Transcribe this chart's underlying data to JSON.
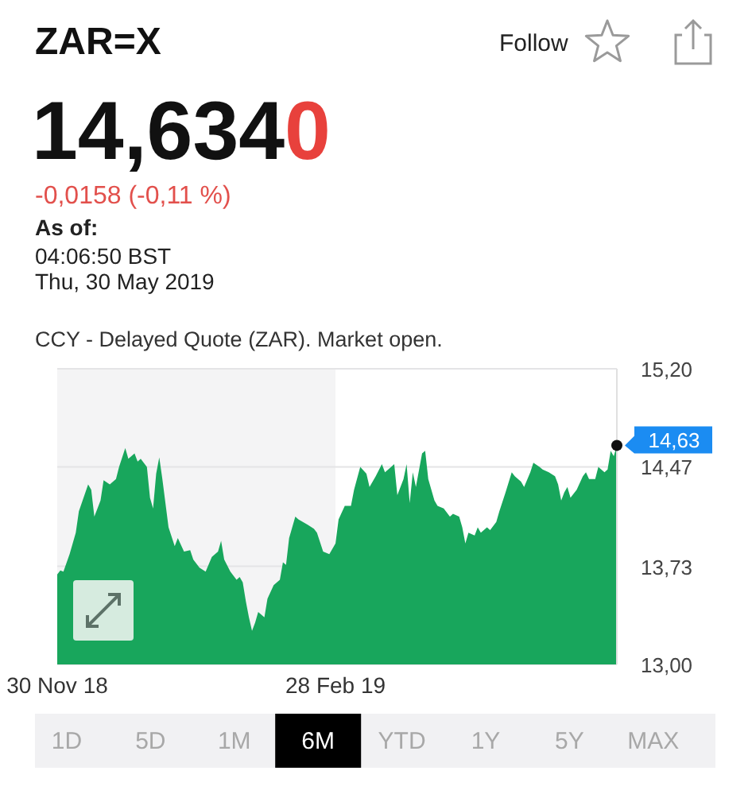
{
  "chart_data": {
    "type": "area",
    "title": "ZAR=X",
    "subtitle": "14,6340",
    "annotations": [
      "Follow",
      "-0,0158 (-0,11 %)",
      "As of:",
      "04:06:50 BST",
      "Thu, 30 May 2019",
      "CCY - Delayed Quote (ZAR). Market open.",
      "1D",
      "5D",
      "1M",
      "6M",
      "YTD",
      "1Y",
      "5Y",
      "MAX",
      {
        "text": "14,63",
        "x": "2019-05-30",
        "y": 14.63
      }
    ],
    "x": [
      "2018-11-30",
      "2018-12-01",
      "2018-12-02",
      "2018-12-04",
      "2018-12-06",
      "2018-12-07",
      "2018-12-10",
      "2018-12-11",
      "2018-12-12",
      "2018-12-14",
      "2018-12-15",
      "2018-12-17",
      "2018-12-19",
      "2018-12-20",
      "2018-12-22",
      "2018-12-23",
      "2018-12-25",
      "2018-12-26",
      "2018-12-27",
      "2018-12-29",
      "2018-12-30",
      "2018-12-31",
      "2019-01-01",
      "2019-01-02",
      "2019-01-03",
      "2019-01-05",
      "2019-01-07",
      "2019-01-08",
      "2019-01-10",
      "2019-01-12",
      "2019-01-13",
      "2019-01-15",
      "2019-01-17",
      "2019-01-19",
      "2019-01-21",
      "2019-01-22",
      "2019-01-23",
      "2019-01-25",
      "2019-01-27",
      "2019-01-28",
      "2019-01-29",
      "2019-01-30",
      "2019-01-31",
      "2019-02-01",
      "2019-02-02",
      "2019-02-03",
      "2019-02-05",
      "2019-02-06",
      "2019-02-08",
      "2019-02-10",
      "2019-02-11",
      "2019-02-12",
      "2019-02-13",
      "2019-02-15",
      "2019-02-16",
      "2019-02-19",
      "2019-02-21",
      "2019-02-22",
      "2019-02-24",
      "2019-02-26",
      "2019-02-28",
      "2019-03-01",
      "2019-03-03",
      "2019-03-05",
      "2019-03-06",
      "2019-03-08",
      "2019-03-10",
      "2019-03-11",
      "2019-03-13",
      "2019-03-15",
      "2019-03-16",
      "2019-03-18",
      "2019-03-19",
      "2019-03-20",
      "2019-03-22",
      "2019-03-23",
      "2019-03-24",
      "2019-03-25",
      "2019-03-26",
      "2019-03-28",
      "2019-03-29",
      "2019-03-30",
      "2019-04-01",
      "2019-04-02",
      "2019-04-04",
      "2019-04-06",
      "2019-04-07",
      "2019-04-09",
      "2019-04-10",
      "2019-04-11",
      "2019-04-12",
      "2019-04-14",
      "2019-04-15",
      "2019-04-16",
      "2019-04-18",
      "2019-04-19",
      "2019-04-21",
      "2019-04-22",
      "2019-04-24",
      "2019-04-26",
      "2019-04-27",
      "2019-04-29",
      "2019-04-30",
      "2019-05-02",
      "2019-05-03",
      "2019-05-05",
      "2019-05-06",
      "2019-05-08",
      "2019-05-10",
      "2019-05-11",
      "2019-05-12",
      "2019-05-13",
      "2019-05-14",
      "2019-05-15",
      "2019-05-17",
      "2019-05-19",
      "2019-05-20",
      "2019-05-21",
      "2019-05-23",
      "2019-05-24",
      "2019-05-26",
      "2019-05-27",
      "2019-05-28",
      "2019-05-29",
      "2019-05-30"
    ],
    "values": [
      13.67,
      13.7,
      13.69,
      13.82,
      13.98,
      14.14,
      14.34,
      14.3,
      14.1,
      14.22,
      14.37,
      14.34,
      14.38,
      14.47,
      14.61,
      14.53,
      14.57,
      14.51,
      14.53,
      14.47,
      14.24,
      14.16,
      14.42,
      14.54,
      14.38,
      14.02,
      13.88,
      13.94,
      13.84,
      13.85,
      13.78,
      13.72,
      13.69,
      13.8,
      13.84,
      13.92,
      13.78,
      13.69,
      13.63,
      13.65,
      13.61,
      13.47,
      13.35,
      13.25,
      13.31,
      13.39,
      13.35,
      13.49,
      13.59,
      13.63,
      13.76,
      13.74,
      13.94,
      14.1,
      14.08,
      14.04,
      14.01,
      13.98,
      13.84,
      13.82,
      13.9,
      14.08,
      14.18,
      14.18,
      14.3,
      14.47,
      14.42,
      14.32,
      14.4,
      14.49,
      14.43,
      14.47,
      14.49,
      14.26,
      14.38,
      14.49,
      14.2,
      14.43,
      14.32,
      14.57,
      14.59,
      14.38,
      14.22,
      14.18,
      14.16,
      14.1,
      14.12,
      14.1,
      14.02,
      13.9,
      13.98,
      13.96,
      14.02,
      13.98,
      14.02,
      14.0,
      14.06,
      14.14,
      14.28,
      14.43,
      14.4,
      14.36,
      14.32,
      14.43,
      14.5,
      14.47,
      14.45,
      14.43,
      14.4,
      14.34,
      14.22,
      14.28,
      14.32,
      14.24,
      14.3,
      14.4,
      14.43,
      14.38,
      14.38,
      14.47,
      14.43,
      14.45,
      14.59,
      14.55,
      14.63
    ],
    "color": "#18a65c",
    "xlim": [
      "2018-11-30",
      "2019-05-30"
    ],
    "xticks": [
      {
        "value": "2018-11-30",
        "label": "30 Nov 18"
      },
      {
        "value": "2019-02-28",
        "label": "28 Feb 19"
      }
    ],
    "ylim": [
      13,
      15.2
    ],
    "yticks": [
      {
        "value": 13,
        "label": "13,00"
      },
      {
        "value": 13.73,
        "label": "13,73"
      },
      {
        "value": 14.47,
        "label": "14,47"
      },
      {
        "value": 15.2,
        "label": "15,20"
      }
    ],
    "grid": "y",
    "bands": [
      {
        "axis": "x",
        "from": "2018-11-30",
        "to": "2019-02-28",
        "color": "#f4f4f5"
      }
    ]
  }
}
